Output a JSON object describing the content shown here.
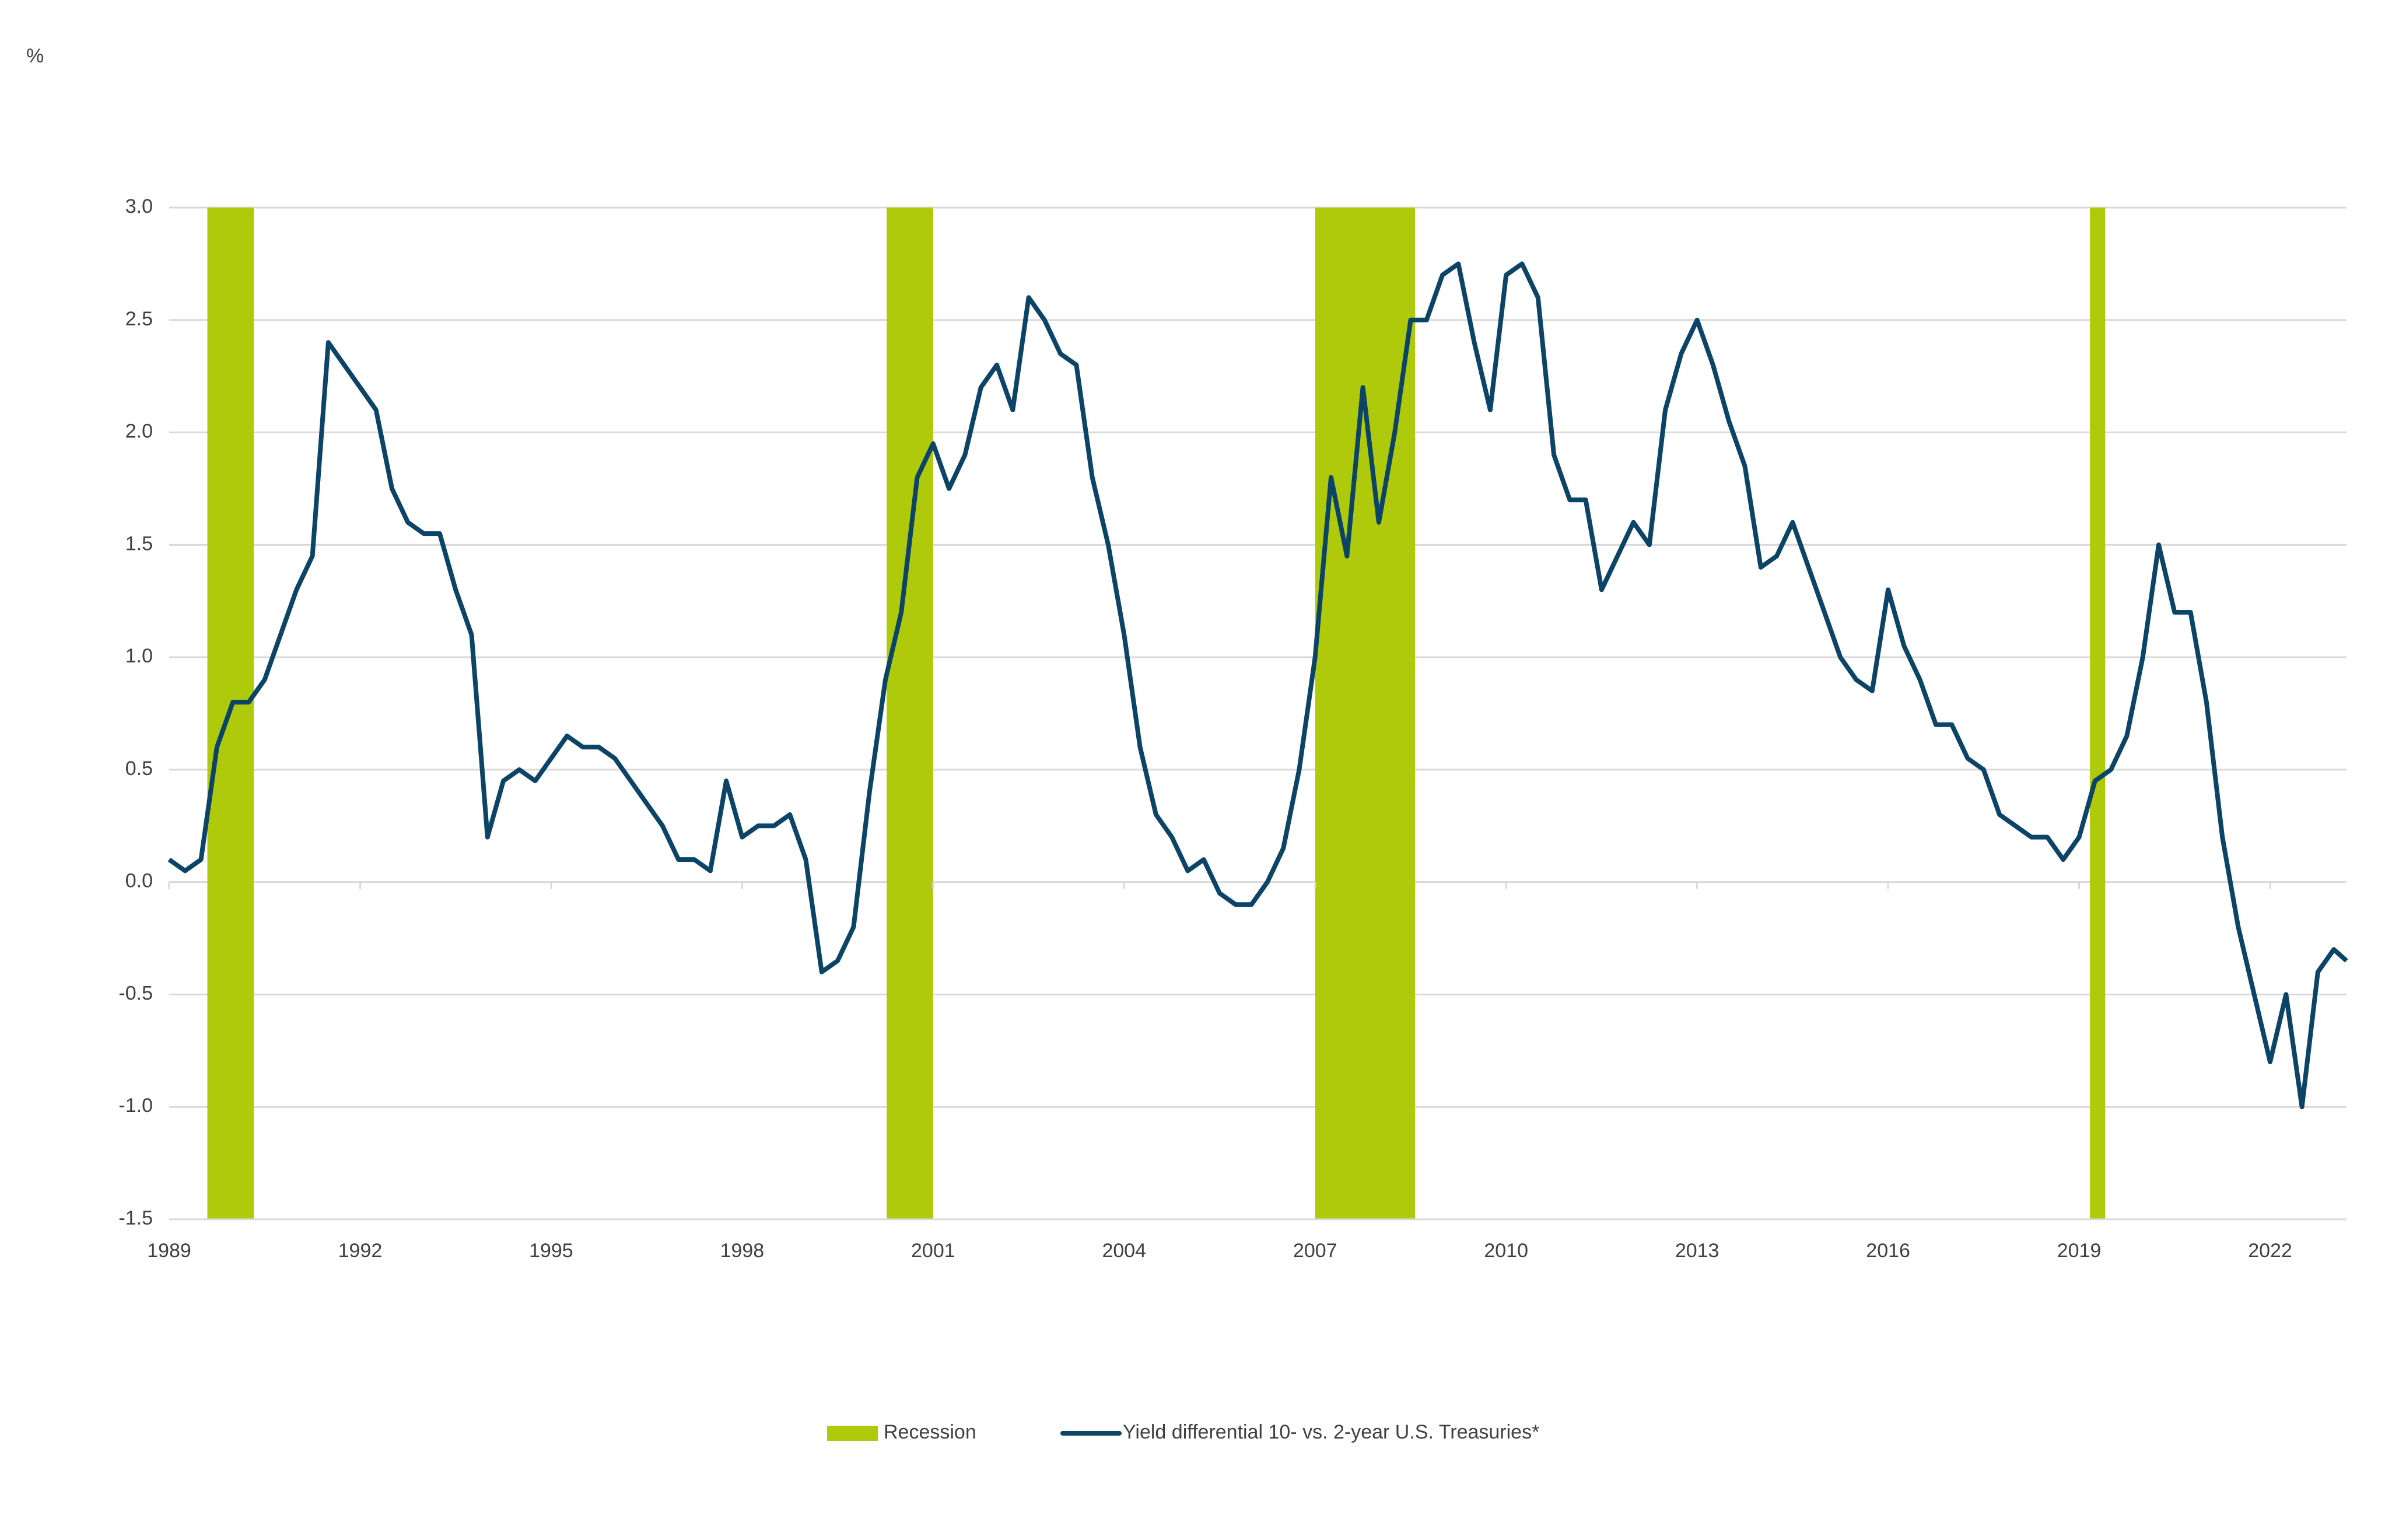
{
  "chart_data": {
    "type": "line",
    "y_unit": "%",
    "xlim": [
      1989,
      2023.2
    ],
    "xticks": [
      1989,
      1992,
      1995,
      1998,
      2001,
      2004,
      2007,
      2010,
      2013,
      2016,
      2019,
      2022
    ],
    "ylim": [
      -1.5,
      3.0
    ],
    "yticks": [
      -1.5,
      {
        "value": -1.0,
        "label": "-1.0"
      },
      -0.5,
      {
        "value": 0,
        "label": "0.0"
      },
      0.5,
      {
        "value": 1.0,
        "label": "1.0"
      },
      1.5,
      {
        "value": 2.0,
        "label": "2.0"
      },
      2.5,
      {
        "value": 3.0,
        "label": "3.0"
      }
    ],
    "grid": true,
    "legend": "bottom",
    "bands": {
      "name": "Recession",
      "color": "#afca0b",
      "ranges": [
        [
          1989.6,
          1990.33
        ],
        [
          2000.27,
          2001.0
        ],
        [
          2007.0,
          2008.57
        ],
        [
          2019.17,
          2019.41
        ]
      ]
    },
    "x": [
      1989,
      1989.25,
      1989.5,
      1989.75,
      1990,
      1990.25,
      1990.5,
      1990.75,
      1991,
      1991.25,
      1991.5,
      1991.75,
      1992,
      1992.25,
      1992.5,
      1992.75,
      1993,
      1993.25,
      1993.5,
      1993.75,
      1994,
      1994.25,
      1994.5,
      1994.75,
      1995,
      1995.25,
      1995.5,
      1995.75,
      1996,
      1996.25,
      1996.5,
      1996.75,
      1997,
      1997.25,
      1997.5,
      1997.75,
      1998,
      1998.25,
      1998.5,
      1998.75,
      1999,
      1999.25,
      1999.5,
      1999.75,
      2000,
      2000.25,
      2000.5,
      2000.75,
      2001,
      2001.25,
      2001.5,
      2001.75,
      2002,
      2002.25,
      2002.5,
      2002.75,
      2003,
      2003.25,
      2003.5,
      2003.75,
      2004,
      2004.25,
      2004.5,
      2004.75,
      2005,
      2005.25,
      2005.5,
      2005.75,
      2006,
      2006.25,
      2006.5,
      2006.75,
      2007,
      2007.25,
      2007.5,
      2007.75,
      2008,
      2008.25,
      2008.5,
      2008.75,
      2009,
      2009.25,
      2009.5,
      2009.75,
      2010,
      2010.25,
      2010.5,
      2010.75,
      2011,
      2011.25,
      2011.5,
      2011.75,
      2012,
      2012.25,
      2012.5,
      2012.75,
      2013,
      2013.25,
      2013.5,
      2013.75,
      2014,
      2014.25,
      2014.5,
      2014.75,
      2015,
      2015.25,
      2015.5,
      2015.75,
      2016,
      2016.25,
      2016.5,
      2016.75,
      2017,
      2017.25,
      2017.5,
      2017.75,
      2018,
      2018.25,
      2018.5,
      2018.75,
      2019,
      2019.25,
      2019.5,
      2019.75,
      2020,
      2020.25,
      2020.5,
      2020.75,
      2021,
      2021.25,
      2021.5,
      2021.75,
      2022,
      2022.25,
      2022.5,
      2022.75,
      2023,
      2023.2
    ],
    "series": [
      {
        "name": "Yield differential 10- vs. 2-year U.S. Treasuries*",
        "color": "#0b4466",
        "values": [
          0.1,
          0.05,
          0.1,
          0.6,
          0.8,
          0.8,
          0.9,
          1.1,
          1.3,
          1.45,
          2.4,
          2.3,
          2.2,
          2.1,
          1.75,
          1.6,
          1.55,
          1.55,
          1.3,
          1.1,
          0.2,
          0.45,
          0.5,
          0.45,
          0.55,
          0.65,
          0.6,
          0.6,
          0.55,
          0.45,
          0.35,
          0.25,
          0.1,
          0.1,
          0.05,
          0.45,
          0.2,
          0.25,
          0.25,
          0.3,
          0.1,
          -0.4,
          -0.35,
          -0.2,
          0.4,
          0.9,
          1.2,
          1.8,
          1.95,
          1.75,
          1.9,
          2.2,
          2.3,
          2.1,
          2.6,
          2.5,
          2.35,
          2.3,
          1.8,
          1.5,
          1.1,
          0.6,
          0.3,
          0.2,
          0.05,
          0.1,
          -0.05,
          -0.1,
          -0.1,
          0.0,
          0.15,
          0.5,
          1.0,
          1.8,
          1.45,
          2.2,
          1.6,
          2.0,
          2.5,
          2.5,
          2.7,
          2.75,
          2.4,
          2.1,
          2.7,
          2.75,
          2.6,
          1.9,
          1.7,
          1.7,
          1.3,
          1.45,
          1.6,
          1.5,
          2.1,
          2.35,
          2.5,
          2.3,
          2.05,
          1.85,
          1.4,
          1.45,
          1.6,
          1.4,
          1.2,
          1.0,
          0.9,
          0.85,
          1.3,
          1.05,
          0.9,
          0.7,
          0.7,
          0.55,
          0.5,
          0.3,
          0.25,
          0.2,
          0.2,
          0.1,
          0.2,
          0.45,
          0.5,
          0.65,
          1.0,
          1.5,
          1.2,
          1.2,
          0.8,
          0.2,
          -0.2,
          -0.5,
          -0.8,
          -0.5,
          -1.0,
          -0.4,
          -0.3,
          -0.35
        ]
      }
    ]
  }
}
